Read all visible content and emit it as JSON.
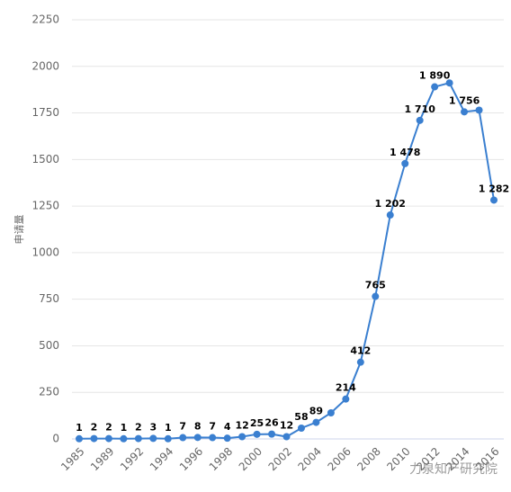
{
  "chart_data": {
    "type": "line",
    "y_label": "申请量",
    "watermark": "力泉知产研究院",
    "categories": [
      "1985",
      null,
      "1989",
      null,
      "1992",
      null,
      "1994",
      null,
      "1996",
      null,
      "1998",
      null,
      "2000",
      null,
      "2002",
      null,
      "2004",
      null,
      "2006",
      null,
      "2008",
      null,
      "2010",
      null,
      "2012",
      null,
      "2014",
      null,
      "2016"
    ],
    "series": [
      {
        "name": "申请量",
        "color": "#3a7fd0",
        "values": [
          1,
          2,
          2,
          1,
          2,
          3,
          1,
          7,
          8,
          7,
          4,
          12,
          25,
          26,
          12,
          58,
          89,
          140,
          214,
          412,
          765,
          1202,
          1478,
          1710,
          1890,
          1911,
          1756,
          1765,
          1282
        ],
        "value_labels": [
          "1",
          "2",
          "2",
          "1",
          "2",
          "3",
          "1",
          "7",
          "8",
          "7",
          "4",
          "12",
          "25",
          "26",
          "12",
          "58",
          "89",
          null,
          "214",
          "412",
          "765",
          "1 202",
          "1 478",
          "1 710",
          "1 890",
          null,
          "1 756",
          null,
          "1 282"
        ]
      }
    ],
    "ylim": [
      0,
      2250
    ],
    "yticks": [
      0,
      250,
      500,
      750,
      1000,
      1250,
      1500,
      1750,
      2000,
      2250
    ],
    "grid": true
  }
}
